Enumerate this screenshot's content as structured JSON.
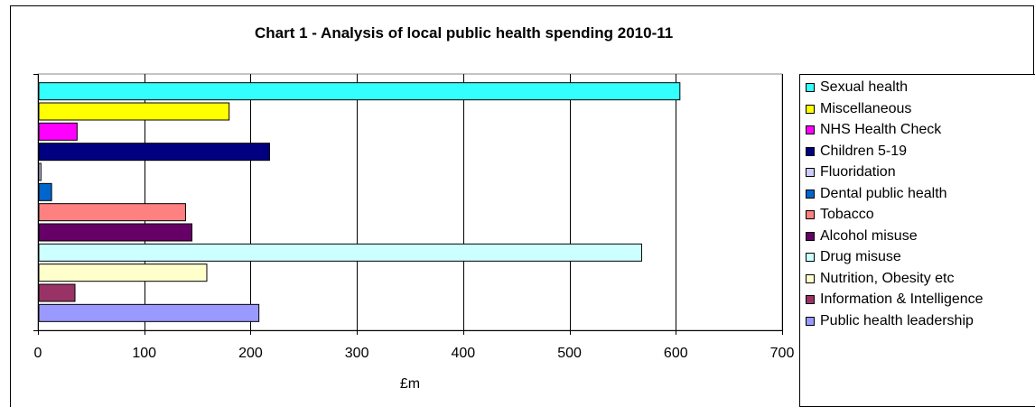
{
  "chart_data": {
    "type": "bar",
    "orientation": "horizontal",
    "title": "Chart 1 - Analysis of local public health spending 2010-11",
    "xlabel": "£m",
    "ylabel": "",
    "xlim": [
      0,
      700
    ],
    "xticks": [
      "0",
      "100",
      "200",
      "300",
      "400",
      "500",
      "600",
      "700"
    ],
    "grid": "vertical",
    "legend_position": "right",
    "categories": [
      "Sexual health",
      "Miscellaneous",
      "NHS Health Check",
      "Children 5-19",
      "Fluoridation",
      "Dental public health",
      "Tobacco",
      "Alcohol misuse",
      "Drug misuse",
      "Nutrition, Obesity etc",
      "Information & Intelligence",
      "Public health leadership"
    ],
    "values": [
      603,
      179,
      36,
      217,
      2,
      12,
      138,
      144,
      567,
      158,
      34,
      207
    ],
    "colors": [
      "#33ffff",
      "#ffff00",
      "#ff00ff",
      "#000080",
      "#ccccff",
      "#0066cc",
      "#ff8080",
      "#660066",
      "#ccffff",
      "#ffffcc",
      "#993366",
      "#9999ff"
    ]
  }
}
